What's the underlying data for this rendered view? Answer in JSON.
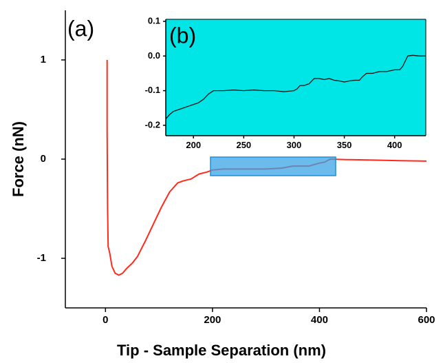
{
  "chart_data": [
    {
      "type": "line",
      "panel_label": "(a)",
      "x_label": "Tip - Sample Separation (nm)",
      "y_label": "Force (nN)",
      "xlim": [
        -75,
        600
      ],
      "xticks": [
        0,
        200,
        400,
        600
      ],
      "ylim": [
        -1.5,
        1.5
      ],
      "yticks": [
        -1,
        0,
        1
      ],
      "series": [
        {
          "color": "#ff2a1a",
          "x": [
            3,
            3,
            4,
            5,
            8,
            12,
            18,
            25,
            32,
            40,
            50,
            60,
            75,
            90,
            105,
            120,
            135,
            145,
            160,
            175,
            190,
            200,
            220,
            250,
            280,
            300,
            330,
            350,
            380,
            400,
            410,
            420,
            450,
            500,
            550,
            600
          ],
          "values": [
            1,
            0.3,
            -0.5,
            -0.88,
            -0.95,
            -1.08,
            -1.15,
            -1.17,
            -1.15,
            -1.1,
            -1.05,
            -0.98,
            -0.82,
            -0.65,
            -0.48,
            -0.33,
            -0.24,
            -0.22,
            -0.2,
            -0.15,
            -0.13,
            -0.11,
            -0.1,
            -0.1,
            -0.1,
            -0.1,
            -0.09,
            -0.07,
            -0.07,
            -0.04,
            -0.03,
            0.0,
            -0.005,
            -0.01,
            -0.015,
            -0.02
          ]
        }
      ]
    },
    {
      "type": "line",
      "panel_label": "(b)",
      "background": "#00e5e5",
      "xlim": [
        172.5,
        431
      ],
      "xticks": [
        200,
        250,
        300,
        350,
        400
      ],
      "ylim": [
        -0.23,
        0.106
      ],
      "yticks": [
        -0.2,
        -0.1,
        {
          "value": 0,
          "label": "0.0"
        },
        0.1
      ],
      "series": [
        {
          "color": "#111111",
          "x": [
            173,
            176,
            180,
            185,
            190,
            195,
            200,
            205,
            210,
            215,
            220,
            230,
            240,
            250,
            260,
            270,
            280,
            290,
            300,
            303,
            306,
            310,
            315,
            320,
            325,
            330,
            335,
            340,
            345,
            350,
            355,
            360,
            365,
            368,
            372,
            378,
            385,
            392,
            400,
            405,
            408,
            413,
            418,
            425,
            431
          ],
          "values": [
            -0.18,
            -0.17,
            -0.16,
            -0.155,
            -0.15,
            -0.145,
            -0.14,
            -0.135,
            -0.125,
            -0.11,
            -0.1,
            -0.1,
            -0.098,
            -0.1,
            -0.098,
            -0.1,
            -0.1,
            -0.103,
            -0.1,
            -0.095,
            -0.085,
            -0.085,
            -0.08,
            -0.065,
            -0.065,
            -0.068,
            -0.065,
            -0.07,
            -0.072,
            -0.075,
            -0.072,
            -0.07,
            -0.07,
            -0.06,
            -0.05,
            -0.05,
            -0.045,
            -0.045,
            -0.04,
            -0.04,
            -0.03,
            0.0,
            0.002,
            0.0,
            0.0
          ]
        }
      ]
    }
  ]
}
